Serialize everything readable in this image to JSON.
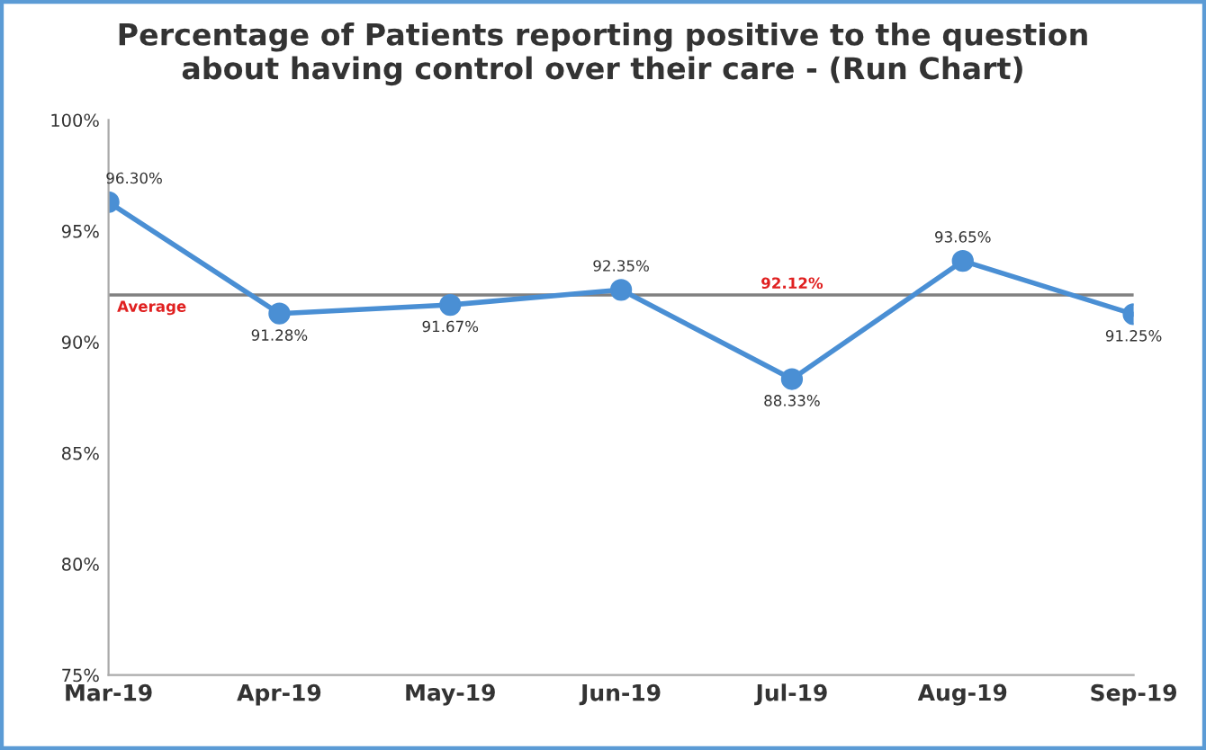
{
  "chart_data": {
    "type": "line",
    "title": "Percentage of Patients reporting positive to the question\nabout having control over their care - (Run Chart)",
    "categories": [
      "Mar-19",
      "Apr-19",
      "May-19",
      "Jun-19",
      "Jul-19",
      "Aug-19",
      "Sep-19"
    ],
    "series": [
      {
        "color": "#4a8fd4",
        "values": [
          96.3,
          91.28,
          91.67,
          92.35,
          88.33,
          93.65,
          91.25
        ],
        "value_labels": [
          "96.30%",
          "91.28%",
          "91.67%",
          "92.35%",
          "88.33%",
          "93.65%",
          "91.25%"
        ]
      }
    ],
    "ylim": [
      75,
      100
    ],
    "yticks": [
      {
        "value": 75,
        "label": "75%"
      },
      {
        "value": 80,
        "label": "80%"
      },
      {
        "value": 85,
        "label": "85%"
      },
      {
        "value": 90,
        "label": "90%"
      },
      {
        "value": 95,
        "label": "95%"
      },
      {
        "value": 100,
        "label": "100%"
      }
    ],
    "ref_lines": [
      {
        "axis": "y",
        "value": 92.12,
        "label": "Average",
        "color": "#808080"
      }
    ],
    "annotations": [
      {
        "text": "92.12%",
        "x": "Jul-19",
        "y": 92.12
      }
    ],
    "marker": "circle",
    "line_style": "solid",
    "grid": false,
    "legend": false
  }
}
